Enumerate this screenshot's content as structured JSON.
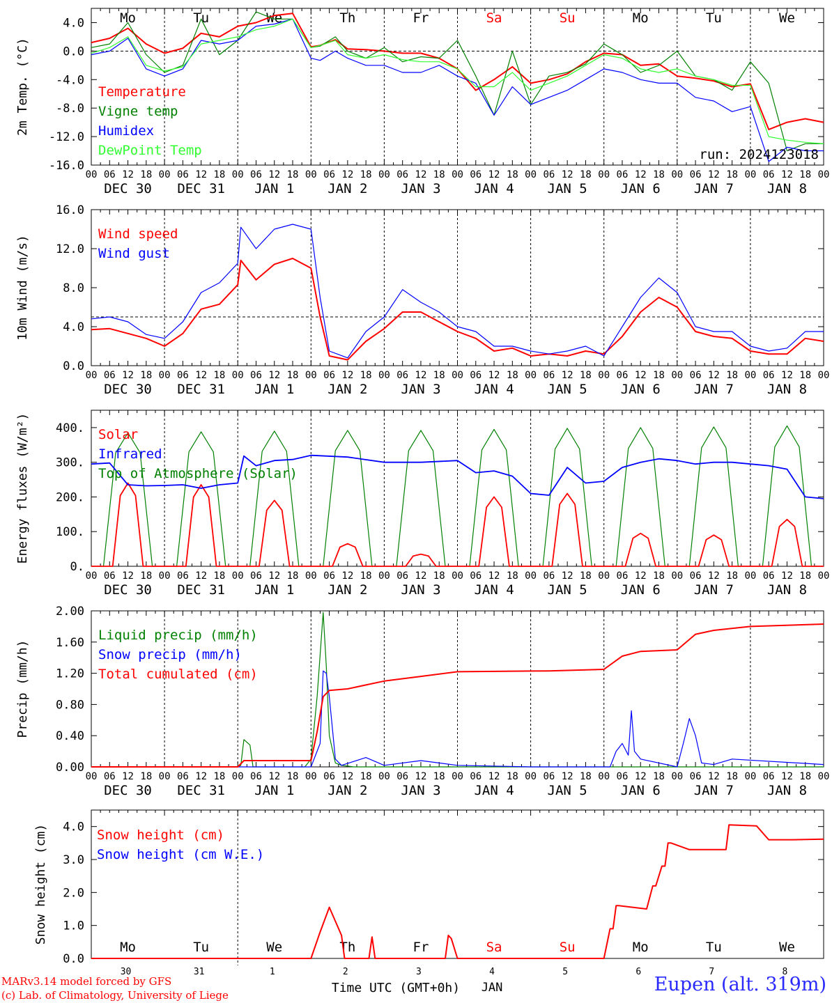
{
  "figure": {
    "days": [
      "DEC 30",
      "DEC 31",
      "JAN  1",
      "JAN  2",
      "JAN  3",
      "JAN  4",
      "JAN  5",
      "JAN  6",
      "JAN  7",
      "JAN  8"
    ],
    "hour_ticks": [
      "00",
      "06",
      "12",
      "18"
    ],
    "weekdays": [
      "Mo",
      "Tu",
      "We",
      "Th",
      "Fr",
      "Sa",
      "Su",
      "Mo",
      "Tu",
      "We"
    ],
    "weekend_color": "#ff0000",
    "bottom_day_numbers": [
      "30",
      "31",
      "1",
      "2",
      "3",
      "4",
      "5",
      "6",
      "7",
      "8"
    ],
    "bottom_month": "JAN",
    "xlabel": "Time UTC (GMT+0h)",
    "credit_line1": "MARv3.14 model forced by GFS",
    "credit_line2": "(c) Lab. of Climatology, University of Liege",
    "station": "Eupen (alt. 319m)"
  },
  "chart_data": [
    {
      "type": "line",
      "ylabel": "2m Temp. (°C)",
      "ylim": [
        -16,
        6
      ],
      "yticks": [
        "4.0",
        "0.0",
        "-4.0",
        "-8.0",
        "-12.0",
        "-16.0"
      ],
      "reference_line": 0,
      "run_label": "run: 2024123018",
      "x_hours_from_dec30_00": [
        0,
        6,
        12,
        18,
        24,
        30,
        36,
        42,
        48,
        54,
        60,
        66,
        72,
        75,
        80,
        84,
        90,
        96,
        102,
        108,
        114,
        120,
        126,
        132,
        138,
        144,
        150,
        156,
        162,
        168,
        174,
        180,
        186,
        192,
        198,
        204,
        210,
        216,
        222,
        228,
        234,
        240
      ],
      "series": [
        {
          "name": "Temperature",
          "color": "#ff0000",
          "values": [
            1.2,
            1.8,
            3.2,
            1.0,
            -0.3,
            0.4,
            2.5,
            2.0,
            3.5,
            4.0,
            5.0,
            5.3,
            0.6,
            0.8,
            1.6,
            0.3,
            0.2,
            0.0,
            -0.3,
            -0.3,
            -1.0,
            -2.5,
            -5.5,
            -4.0,
            -2.2,
            -4.5,
            -4.0,
            -3.2,
            -1.5,
            -0.3,
            -0.5,
            -2.0,
            -1.8,
            -3.5,
            -3.8,
            -4.2,
            -5.0,
            -4.6,
            -11.0,
            -10.0,
            -9.5,
            -10.0
          ]
        },
        {
          "name": "Vigne temp",
          "color": "#008000",
          "values": [
            0.5,
            1.0,
            4.0,
            -0.5,
            -3.0,
            -2.0,
            4.5,
            -0.5,
            1.5,
            5.5,
            4.5,
            4.5,
            0.5,
            0.7,
            2.0,
            0.0,
            -1.0,
            0.5,
            -1.5,
            -0.8,
            -1.0,
            1.5,
            -3.5,
            -9.0,
            0.0,
            -7.5,
            -3.5,
            -3.0,
            -1.8,
            1.0,
            -0.5,
            -3.0,
            -2.0,
            0.0,
            -3.5,
            -4.0,
            -5.5,
            -1.5,
            -4.5,
            -14.0,
            -13.0,
            -13.0
          ]
        },
        {
          "name": "Humidex",
          "color": "#0000ff",
          "values": [
            -0.5,
            0.0,
            1.8,
            -2.5,
            -3.5,
            -2.5,
            1.5,
            1.0,
            1.5,
            3.5,
            3.8,
            4.5,
            -1.0,
            -1.3,
            0.0,
            -1.0,
            -2.0,
            -2.0,
            -3.0,
            -3.0,
            -2.0,
            -3.5,
            -4.5,
            -9.0,
            -5.0,
            -7.5,
            -6.5,
            -5.5,
            -4.0,
            -2.5,
            -3.0,
            -4.0,
            -4.5,
            -4.5,
            -6.5,
            -7.0,
            -8.5,
            -7.8,
            -15.5,
            -13.5,
            -14.0,
            -14.0
          ]
        },
        {
          "name": "DewPoint Temp",
          "color": "#30ff30",
          "values": [
            -0.3,
            0.5,
            2.0,
            -2.0,
            -2.8,
            -2.2,
            1.0,
            1.5,
            2.0,
            3.0,
            3.5,
            4.5,
            0.5,
            0.8,
            1.5,
            -0.5,
            -1.0,
            -0.5,
            -1.2,
            -1.5,
            -1.5,
            -2.5,
            -5.0,
            -5.0,
            -3.0,
            -5.5,
            -4.5,
            -3.5,
            -2.0,
            -0.5,
            -1.0,
            -2.5,
            -3.0,
            -2.5,
            -3.5,
            -4.0,
            -4.8,
            -4.8,
            -12.0,
            -12.5,
            -12.8,
            -13.0
          ]
        }
      ]
    },
    {
      "type": "line",
      "ylabel": "10m Wind (m/s)",
      "ylim": [
        0,
        16
      ],
      "yticks": [
        "16.0",
        "12.0",
        "8.0",
        "4.0",
        "0.0"
      ],
      "reference_line": 5,
      "x_hours_from_dec30_00": [
        0,
        6,
        12,
        18,
        24,
        30,
        36,
        42,
        48,
        49,
        54,
        60,
        66,
        72,
        75,
        78,
        84,
        90,
        96,
        102,
        108,
        114,
        120,
        126,
        132,
        138,
        144,
        150,
        156,
        162,
        168,
        174,
        180,
        186,
        192,
        198,
        204,
        210,
        216,
        222,
        228,
        234,
        240
      ],
      "series": [
        {
          "name": "Wind speed",
          "color": "#ff0000",
          "values": [
            3.7,
            3.8,
            3.3,
            2.8,
            2.0,
            3.3,
            5.8,
            6.3,
            8.3,
            10.8,
            8.8,
            10.4,
            11.0,
            10.0,
            5.0,
            1.0,
            0.6,
            2.5,
            3.8,
            5.5,
            5.5,
            4.5,
            3.5,
            2.8,
            1.5,
            1.8,
            1.0,
            1.2,
            1.0,
            1.5,
            1.2,
            3.0,
            5.5,
            7.0,
            6.0,
            3.5,
            3.0,
            2.8,
            1.5,
            1.2,
            1.2,
            2.8,
            2.5
          ]
        },
        {
          "name": "Wind gust",
          "color": "#0000ff",
          "values": [
            4.8,
            5.0,
            4.5,
            3.2,
            2.8,
            4.5,
            7.5,
            8.5,
            10.5,
            14.2,
            12.0,
            14.0,
            14.5,
            14.0,
            7.0,
            1.5,
            0.8,
            3.5,
            5.0,
            7.8,
            6.5,
            5.5,
            4.0,
            3.5,
            2.0,
            2.0,
            1.5,
            1.2,
            1.5,
            2.0,
            1.0,
            4.0,
            7.0,
            9.0,
            7.5,
            4.0,
            3.5,
            3.5,
            2.0,
            1.5,
            1.8,
            3.5,
            3.5
          ]
        }
      ]
    },
    {
      "type": "line",
      "ylabel": "Energy fluxes (W/m²)",
      "ylim": [
        0,
        450
      ],
      "yticks": [
        "400.",
        "300.",
        "200.",
        "100.",
        "0."
      ],
      "series": [
        {
          "name": "Solar",
          "color": "#ff0000",
          "daily_peaks": [
            240,
            235,
            190,
            65,
            35,
            200,
            210,
            95,
            90,
            135
          ]
        },
        {
          "name": "Infrared",
          "color": "#0000ff",
          "x_hours_from_dec30_00": [
            0,
            6,
            12,
            18,
            24,
            30,
            36,
            42,
            48,
            50,
            54,
            60,
            66,
            72,
            84,
            96,
            108,
            120,
            126,
            132,
            138,
            144,
            150,
            156,
            162,
            168,
            174,
            180,
            186,
            192,
            198,
            204,
            210,
            216,
            222,
            228,
            234,
            240
          ],
          "values": [
            295,
            298,
            235,
            232,
            233,
            235,
            225,
            235,
            240,
            318,
            290,
            305,
            308,
            320,
            315,
            300,
            300,
            305,
            270,
            275,
            260,
            210,
            205,
            285,
            240,
            245,
            285,
            300,
            310,
            305,
            295,
            300,
            300,
            295,
            290,
            280,
            200,
            195
          ]
        },
        {
          "name": "Top of Atmosphere (Solar)",
          "color": "#008000",
          "daily_peaks": [
            385,
            388,
            390,
            392,
            392,
            395,
            398,
            400,
            402,
            405
          ]
        }
      ]
    },
    {
      "type": "line",
      "ylabel": "Precip (mm/h)",
      "ylim": [
        0,
        2
      ],
      "yticks": [
        "2.00",
        "1.60",
        "1.20",
        "0.80",
        "0.40",
        "0.00"
      ],
      "series": [
        {
          "name": "Liquid precip (mm/h)",
          "color": "#008000",
          "x_hours_from_dec30_00": [
            0,
            48,
            49,
            50,
            52,
            53,
            70,
            72,
            74,
            76,
            77,
            78,
            80,
            82,
            84,
            86,
            120,
            240
          ],
          "values": [
            0,
            0,
            0.02,
            0.35,
            0.28,
            0,
            0,
            0.1,
            0.9,
            1.98,
            1.3,
            0.4,
            0.05,
            0.02,
            0.01,
            0,
            0,
            0
          ]
        },
        {
          "name": "Snow precip (mm/h)",
          "color": "#0000ff",
          "x_hours_from_dec30_00": [
            0,
            72,
            75,
            76,
            77,
            78,
            80,
            82,
            90,
            96,
            108,
            120,
            144,
            170,
            172,
            174,
            176,
            177,
            178,
            180,
            192,
            194,
            196,
            198,
            200,
            204,
            210,
            240
          ],
          "values": [
            0,
            0,
            0.3,
            1.23,
            1.2,
            0.9,
            0.1,
            0.02,
            0.12,
            0.02,
            0.08,
            0.02,
            0,
            0,
            0.2,
            0.3,
            0.15,
            0.72,
            0.2,
            0.1,
            0,
            0.3,
            0.62,
            0.4,
            0.05,
            0.03,
            0.1,
            0.03
          ]
        },
        {
          "name": "Total cumulated (cm)",
          "color": "#ff0000",
          "x_hours_from_dec30_00": [
            0,
            48,
            50,
            72,
            74,
            76,
            78,
            84,
            90,
            96,
            108,
            120,
            150,
            168,
            174,
            180,
            192,
            198,
            204,
            216,
            240
          ],
          "values": [
            0,
            0,
            0.08,
            0.08,
            0.45,
            0.9,
            0.98,
            1.0,
            1.05,
            1.1,
            1.16,
            1.22,
            1.23,
            1.25,
            1.42,
            1.48,
            1.5,
            1.7,
            1.75,
            1.8,
            1.83
          ]
        }
      ]
    },
    {
      "type": "line",
      "ylabel": "Snow height (cm)",
      "ylim": [
        0,
        4.5
      ],
      "yticks": [
        "4.0",
        "3.0",
        "2.0",
        "1.0",
        "0.0"
      ],
      "series": [
        {
          "name": "Snow height (cm)",
          "color": "#ff0000",
          "x_hours_from_dec30_00": [
            0,
            72,
            75,
            78,
            82,
            83,
            91,
            92,
            93,
            96,
            116,
            117,
            118,
            120,
            168,
            170,
            171,
            172,
            173,
            182,
            184,
            185,
            187,
            188,
            189,
            190,
            196,
            208,
            209,
            218,
            222,
            230,
            240
          ],
          "values": [
            0,
            0,
            0.8,
            1.55,
            0.7,
            0,
            0,
            0.65,
            0,
            0,
            0,
            0.7,
            0.6,
            0,
            0,
            0.9,
            0.9,
            1.6,
            1.6,
            1.5,
            2.2,
            2.2,
            2.8,
            2.8,
            3.5,
            3.5,
            3.3,
            3.3,
            4.05,
            4.02,
            3.6,
            3.6,
            3.62
          ]
        },
        {
          "name": "Snow height (cm W.E.)",
          "color": "#0000ff",
          "values": []
        }
      ]
    }
  ]
}
